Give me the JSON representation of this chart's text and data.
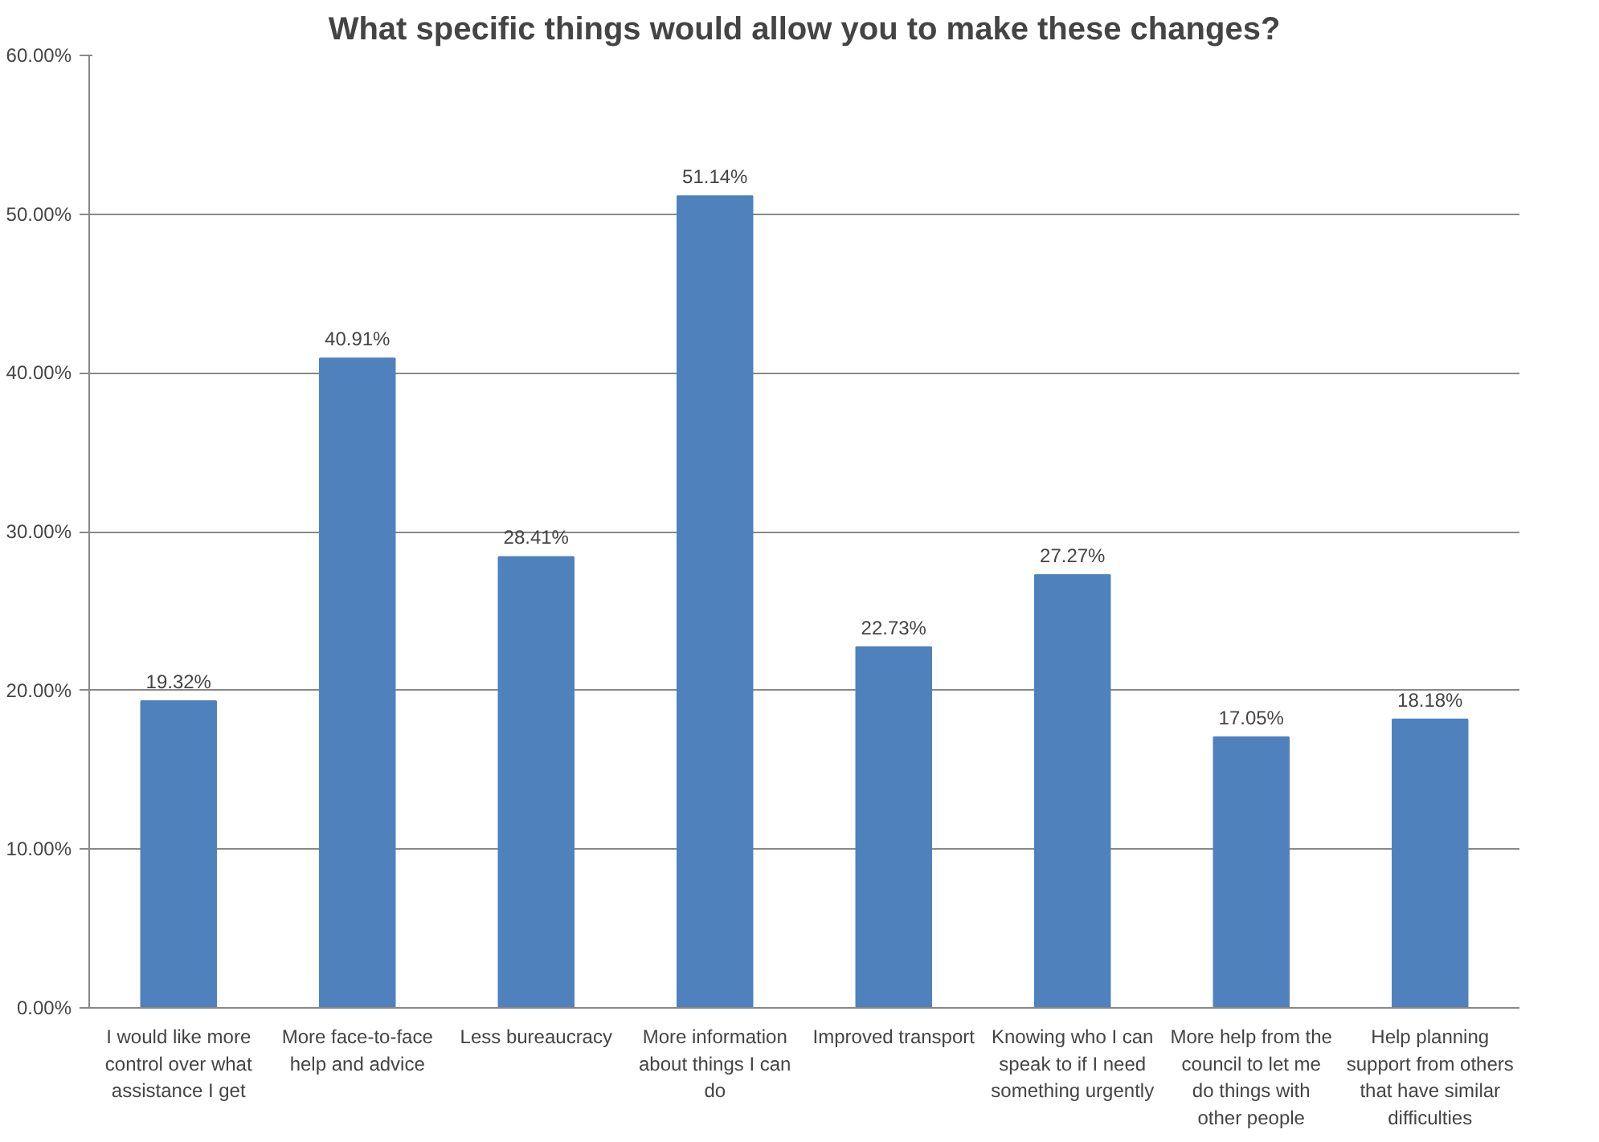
{
  "chart_data": {
    "type": "bar",
    "title": "What specific things would allow you to make these changes?",
    "categories": [
      "I would like more control over what assistance I get",
      "More face-to-face help and advice",
      "Less bureaucracy",
      "More information about things I can do",
      "Improved transport",
      "Knowing who I can speak to if I need something urgently",
      "More help from the council to let me do things with other people",
      "Help planning support from others that have similar difficulties"
    ],
    "values": [
      19.32,
      40.91,
      28.41,
      51.14,
      22.73,
      27.27,
      17.05,
      18.18
    ],
    "value_labels": [
      "19.32%",
      "40.91%",
      "28.41%",
      "51.14%",
      "22.73%",
      "27.27%",
      "17.05%",
      "18.18%"
    ],
    "color": "#4f81bd",
    "ylim": [
      0,
      60
    ],
    "yticks": [
      {
        "value": 0,
        "label": "0.00%"
      },
      {
        "value": 10,
        "label": "10.00%"
      },
      {
        "value": 20,
        "label": "20.00%"
      },
      {
        "value": 30,
        "label": "30.00%"
      },
      {
        "value": 40,
        "label": "40.00%"
      },
      {
        "value": 50,
        "label": "50.00%"
      },
      {
        "value": 60,
        "label": "60.00%"
      }
    ],
    "grid": "y"
  }
}
